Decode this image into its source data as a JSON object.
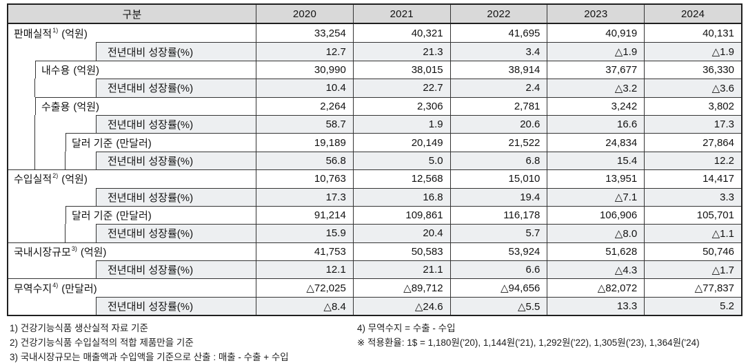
{
  "table": {
    "category_header": "구분",
    "years": [
      "2020",
      "2021",
      "2022",
      "2023",
      "2024"
    ],
    "growth_label": "전년대비 성장률(%)",
    "rows": [
      {
        "type": "main",
        "indent": 0,
        "label": "판매실적",
        "sup": "1)",
        "unit": "(억원)",
        "values": [
          "33,254",
          "40,321",
          "41,695",
          "40,919",
          "40,131"
        ]
      },
      {
        "type": "growth",
        "values": [
          "12.7",
          "21.3",
          "3.4",
          "△1.9",
          "△1.9"
        ]
      },
      {
        "type": "main",
        "indent": 1,
        "label": "내수용",
        "sup": "",
        "unit": "(억원)",
        "values": [
          "30,990",
          "38,015",
          "38,914",
          "37,677",
          "36,330"
        ]
      },
      {
        "type": "growth",
        "values": [
          "10.4",
          "22.7",
          "2.4",
          "△3.2",
          "△3.6"
        ]
      },
      {
        "type": "main",
        "indent": 1,
        "label": "수출용",
        "sup": "",
        "unit": "(억원)",
        "values": [
          "2,264",
          "2,306",
          "2,781",
          "3,242",
          "3,802"
        ]
      },
      {
        "type": "growth",
        "values": [
          "58.7",
          "1.9",
          "20.6",
          "16.6",
          "17.3"
        ]
      },
      {
        "type": "main",
        "indent": 2,
        "label": "달러 기준",
        "sup": "",
        "unit": "(만달러)",
        "values": [
          "19,189",
          "20,149",
          "21,522",
          "24,834",
          "27,864"
        ]
      },
      {
        "type": "growth",
        "values": [
          "56.8",
          "5.0",
          "6.8",
          "15.4",
          "12.2"
        ]
      },
      {
        "type": "main",
        "indent": 0,
        "label": "수입실적",
        "sup": "2)",
        "unit": "(억원)",
        "values": [
          "10,763",
          "12,568",
          "15,010",
          "13,951",
          "14,417"
        ]
      },
      {
        "type": "growth",
        "values": [
          "17.3",
          "16.8",
          "19.4",
          "△7.1",
          "3.3"
        ]
      },
      {
        "type": "main",
        "indent": 2,
        "label": "달러 기준",
        "sup": "",
        "unit": "(만달러)",
        "values": [
          "91,214",
          "109,861",
          "116,178",
          "106,906",
          "105,701"
        ]
      },
      {
        "type": "growth",
        "values": [
          "15.9",
          "20.4",
          "5.7",
          "△8.0",
          "△1.1"
        ]
      },
      {
        "type": "main",
        "indent": 0,
        "label": "국내시장규모",
        "sup": "3)",
        "unit": "(억원)",
        "values": [
          "41,753",
          "50,583",
          "53,924",
          "51,628",
          "50,746"
        ]
      },
      {
        "type": "growth",
        "values": [
          "12.1",
          "21.1",
          "6.6",
          "△4.3",
          "△1.7"
        ]
      },
      {
        "type": "main",
        "indent": 0,
        "label": "무역수지",
        "sup": "4)",
        "unit": "(만달러)",
        "values": [
          "△72,025",
          "△89,712",
          "△94,656",
          "△82,072",
          "△77,837"
        ]
      },
      {
        "type": "growth",
        "values": [
          "△8.4",
          "△24.6",
          "△5.5",
          "13.3",
          "5.2"
        ]
      }
    ]
  },
  "footnotes": {
    "left": [
      "1) 건강기능식품 생산실적 자료 기준",
      "2) 건강기능식품 수입실적의 적합 제품만을 기준",
      "3) 국내시장규모는 매출액과 수입액을 기준으로 산출 : 매출 - 수출 + 수입"
    ],
    "right": [
      "4) 무역수지 = 수출 - 수입",
      "※ 적용환율: 1$ = 1,180원('20), 1,144원('21), 1,292원('22), 1,305원('23), 1,364원('24)"
    ]
  },
  "colors": {
    "header_bg": "#d9d9d9",
    "growth_row_bg": "#edeff1",
    "border": "#333333"
  }
}
